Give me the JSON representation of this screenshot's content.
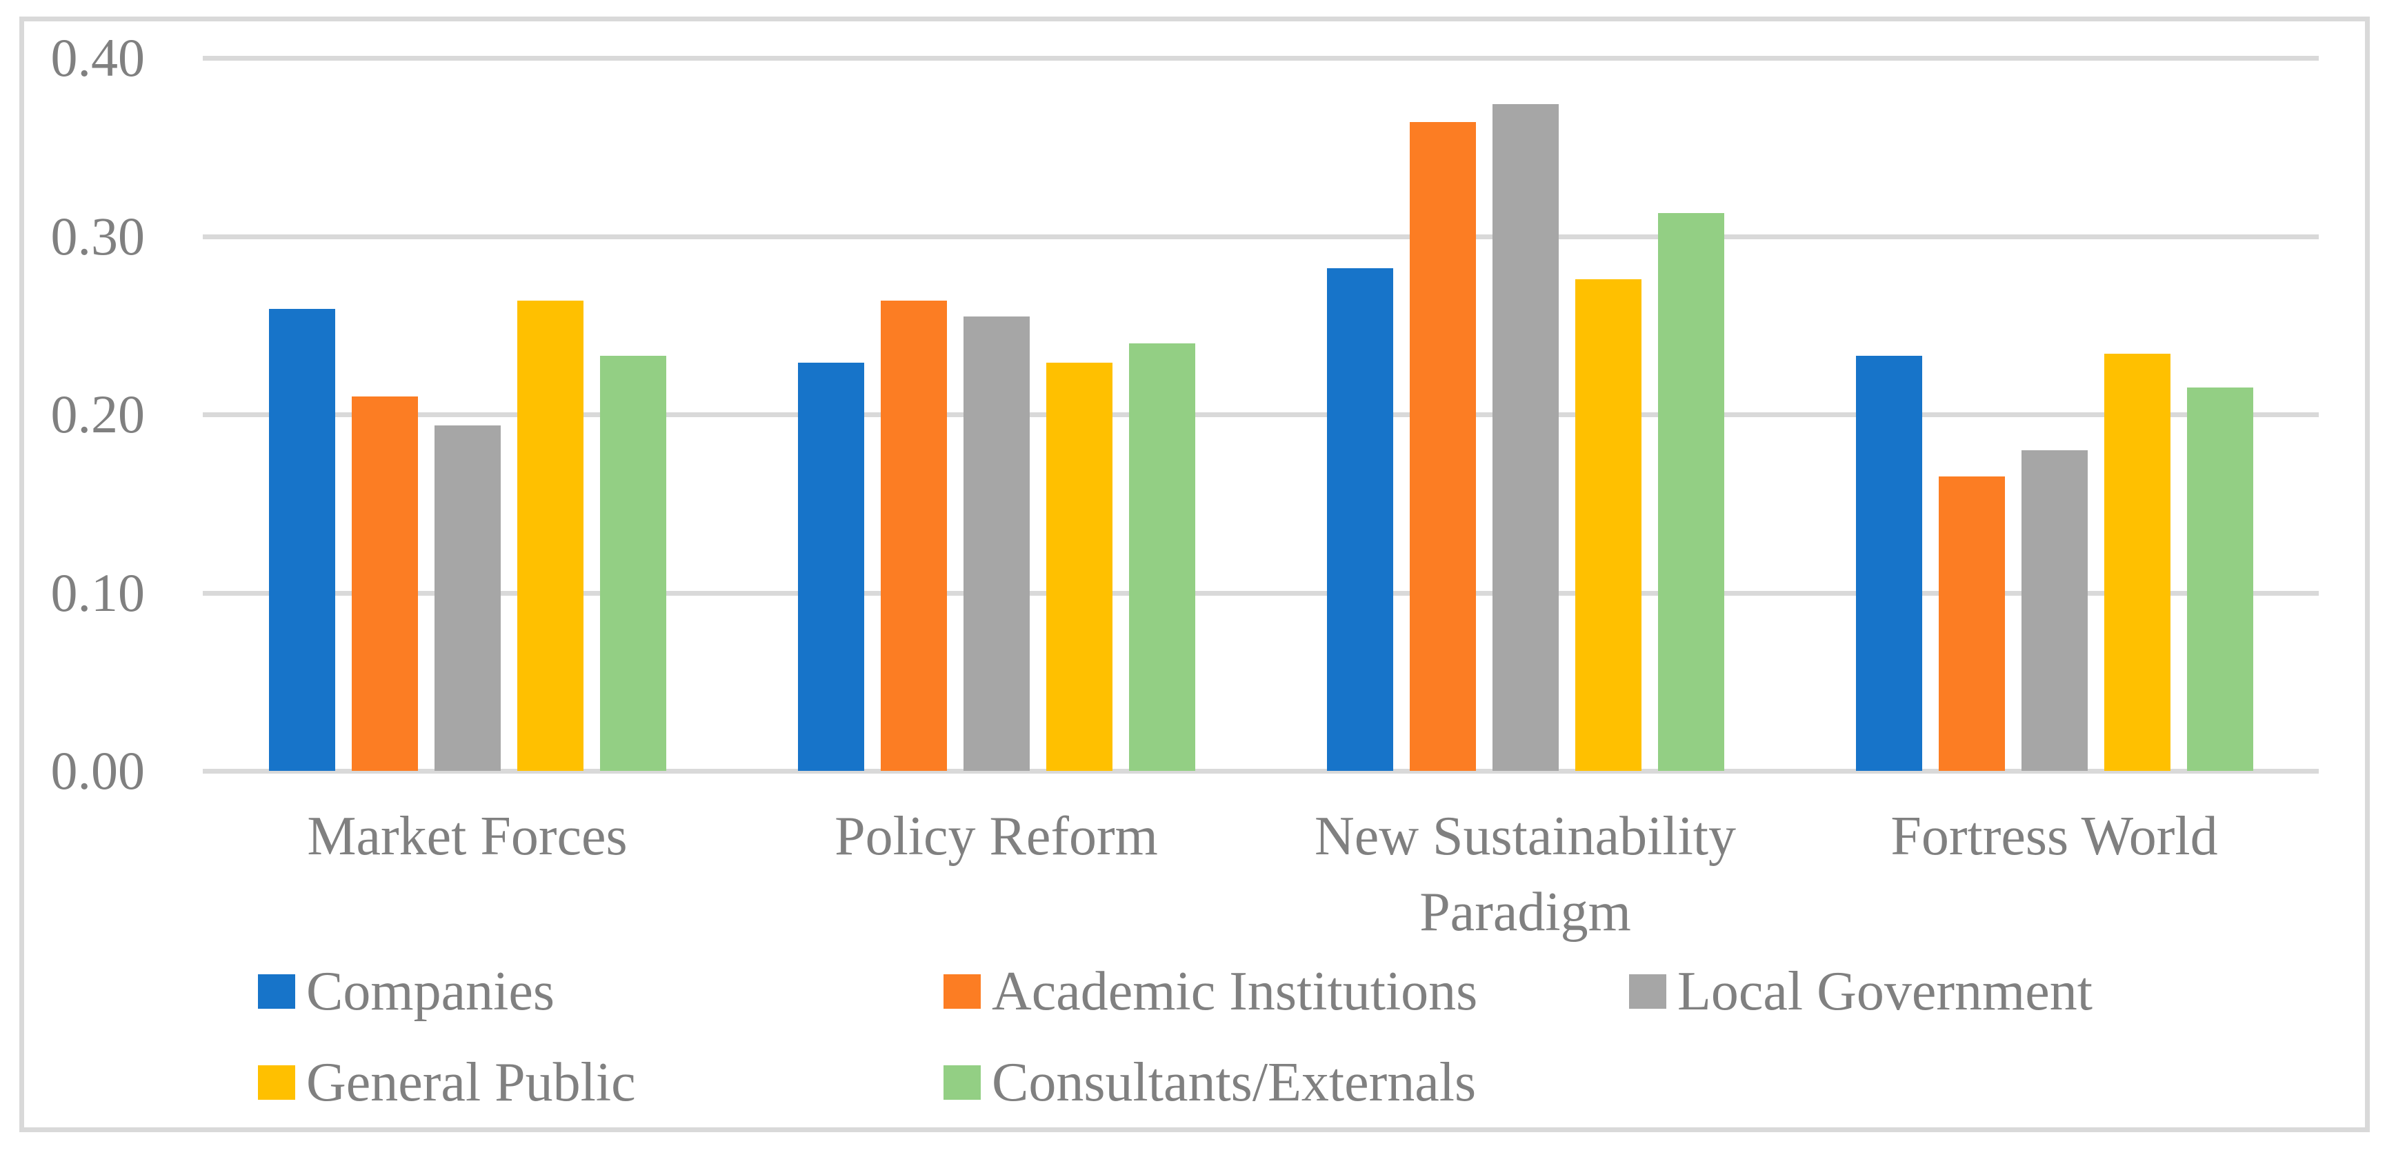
{
  "chart_data": {
    "type": "bar",
    "title": "",
    "xlabel": "",
    "ylabel": "",
    "categories": [
      "Market Forces",
      "Policy Reform",
      "New Sustainability\nParadigm",
      "Fortress World"
    ],
    "series": [
      {
        "name": "Companies",
        "color": "#1774C9",
        "values": [
          0.259,
          0.229,
          0.282,
          0.233
        ]
      },
      {
        "name": "Academic Institutions",
        "color": "#FC7D23",
        "values": [
          0.21,
          0.264,
          0.364,
          0.165
        ]
      },
      {
        "name": "Local Government",
        "color": "#A6A6A6",
        "values": [
          0.194,
          0.255,
          0.374,
          0.18
        ]
      },
      {
        "name": "General Public",
        "color": "#FFC000",
        "values": [
          0.264,
          0.229,
          0.276,
          0.234
        ]
      },
      {
        "name": "Consultants/Externals",
        "color": "#93CF84",
        "values": [
          0.233,
          0.24,
          0.313,
          0.215
        ]
      }
    ],
    "ylim": [
      0,
      0.4
    ],
    "ytick_step": 0.1,
    "ytick_labels": [
      "0.00",
      "0.10",
      "0.20",
      "0.30",
      "0.40"
    ],
    "grid": true,
    "legend_position": "bottom",
    "legend_rows": [
      [
        0,
        1,
        2
      ],
      [
        3,
        4
      ]
    ],
    "colors": {
      "gridline": "#D9D9D9",
      "frame": "#D9D9D9",
      "text": "#808080",
      "background": "#FFFFFF"
    }
  }
}
